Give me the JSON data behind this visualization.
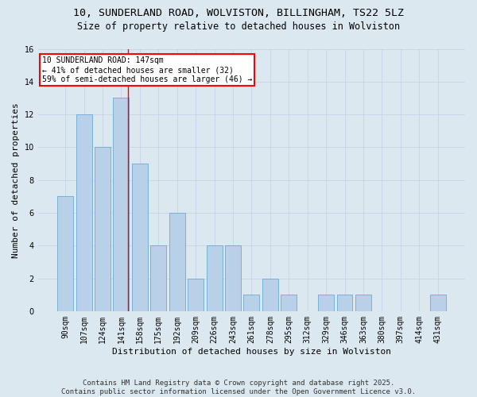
{
  "title1": "10, SUNDERLAND ROAD, WOLVISTON, BILLINGHAM, TS22 5LZ",
  "title2": "Size of property relative to detached houses in Wolviston",
  "xlabel": "Distribution of detached houses by size in Wolviston",
  "ylabel": "Number of detached properties",
  "bar_labels": [
    "90sqm",
    "107sqm",
    "124sqm",
    "141sqm",
    "158sqm",
    "175sqm",
    "192sqm",
    "209sqm",
    "226sqm",
    "243sqm",
    "261sqm",
    "278sqm",
    "295sqm",
    "312sqm",
    "329sqm",
    "346sqm",
    "363sqm",
    "380sqm",
    "397sqm",
    "414sqm",
    "431sqm"
  ],
  "bar_values": [
    7,
    12,
    10,
    13,
    9,
    4,
    6,
    2,
    4,
    4,
    1,
    2,
    1,
    0,
    1,
    1,
    1,
    0,
    0,
    0,
    1
  ],
  "bar_color": "#b8d0e8",
  "bar_edge_color": "#6aaad4",
  "vline_x_index": 3,
  "vline_color": "red",
  "annotation_text": "10 SUNDERLAND ROAD: 147sqm\n← 41% of detached houses are smaller (32)\n59% of semi-detached houses are larger (46) →",
  "annotation_box_color": "white",
  "annotation_box_edge_color": "red",
  "ylim": [
    0,
    16
  ],
  "yticks": [
    0,
    2,
    4,
    6,
    8,
    10,
    12,
    14,
    16
  ],
  "grid_color": "#c8d4e8",
  "bg_color": "#dce8f0",
  "footer": "Contains HM Land Registry data © Crown copyright and database right 2025.\nContains public sector information licensed under the Open Government Licence v3.0.",
  "title1_fontsize": 9.5,
  "title2_fontsize": 8.5,
  "xlabel_fontsize": 8,
  "ylabel_fontsize": 8,
  "tick_fontsize": 7,
  "annotation_fontsize": 7,
  "footer_fontsize": 6.5
}
